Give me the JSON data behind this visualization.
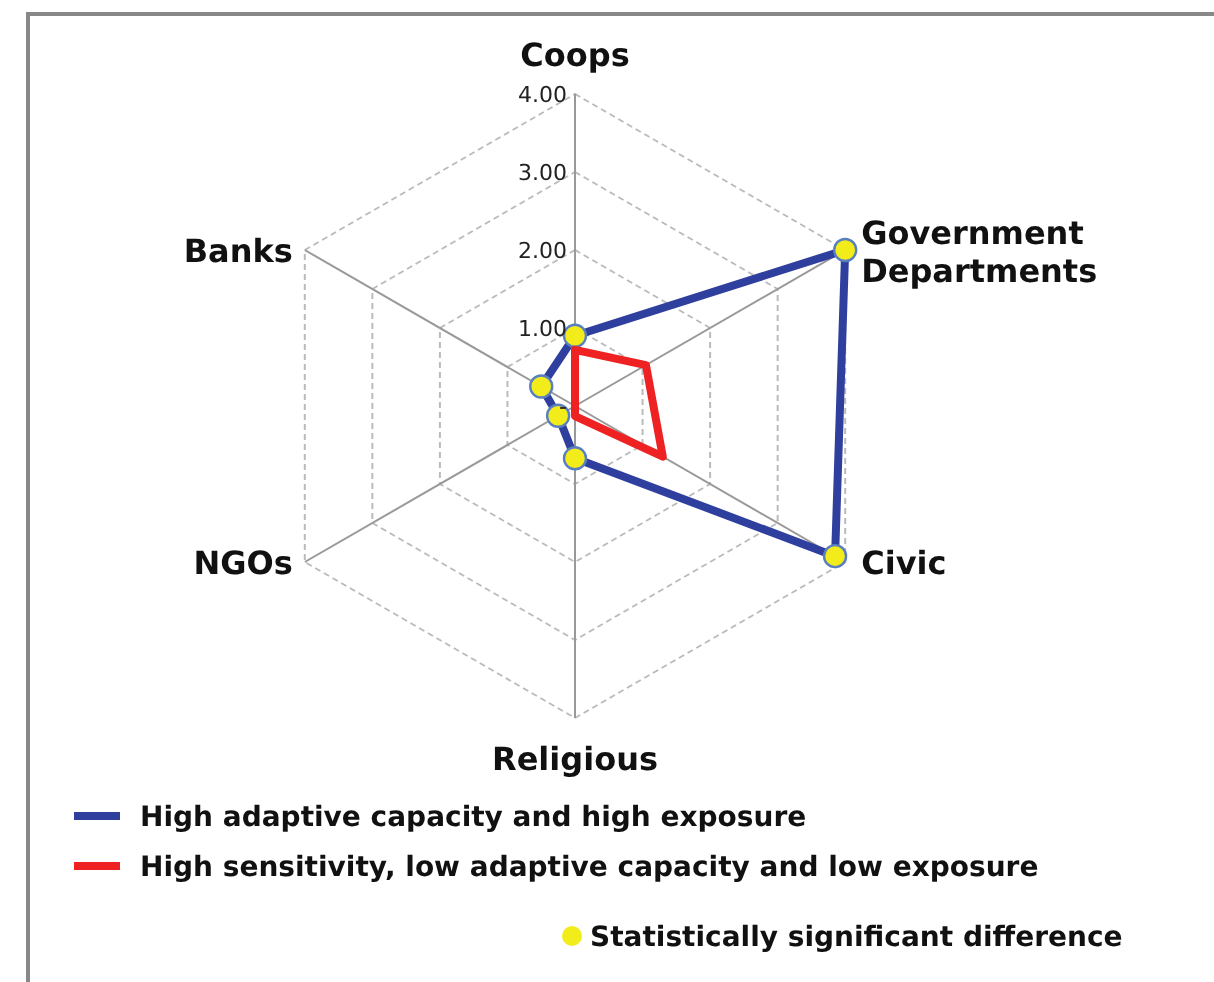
{
  "chart_data": {
    "type": "radar",
    "categories": [
      "Coops",
      "Government Departments",
      "Civic",
      "Religious",
      "NGOs",
      "Banks"
    ],
    "ylim": [
      0,
      4
    ],
    "yticks": [
      {
        "value": 0,
        "label": "-"
      },
      {
        "value": 1,
        "label": "1.00"
      },
      {
        "value": 2,
        "label": "2.00"
      },
      {
        "value": 3,
        "label": "3.00"
      },
      {
        "value": 4,
        "label": "4.00"
      }
    ],
    "grid": true,
    "legend": "bottom",
    "annotations": [
      "Statistically significant difference"
    ],
    "series": [
      {
        "name": "High adaptive capacity and high exposure",
        "color": "#2e3f9e",
        "values": [
          0.9,
          4,
          3.85,
          0.67,
          0.25,
          0.5
        ],
        "marker": "circle"
      },
      {
        "name": "High sensitivity, low adaptive capacity and low exposure",
        "color": "#ee2222",
        "values": [
          0.72,
          1.05,
          1.3,
          0.13,
          0,
          0
        ],
        "marker": "none"
      }
    ]
  }
}
